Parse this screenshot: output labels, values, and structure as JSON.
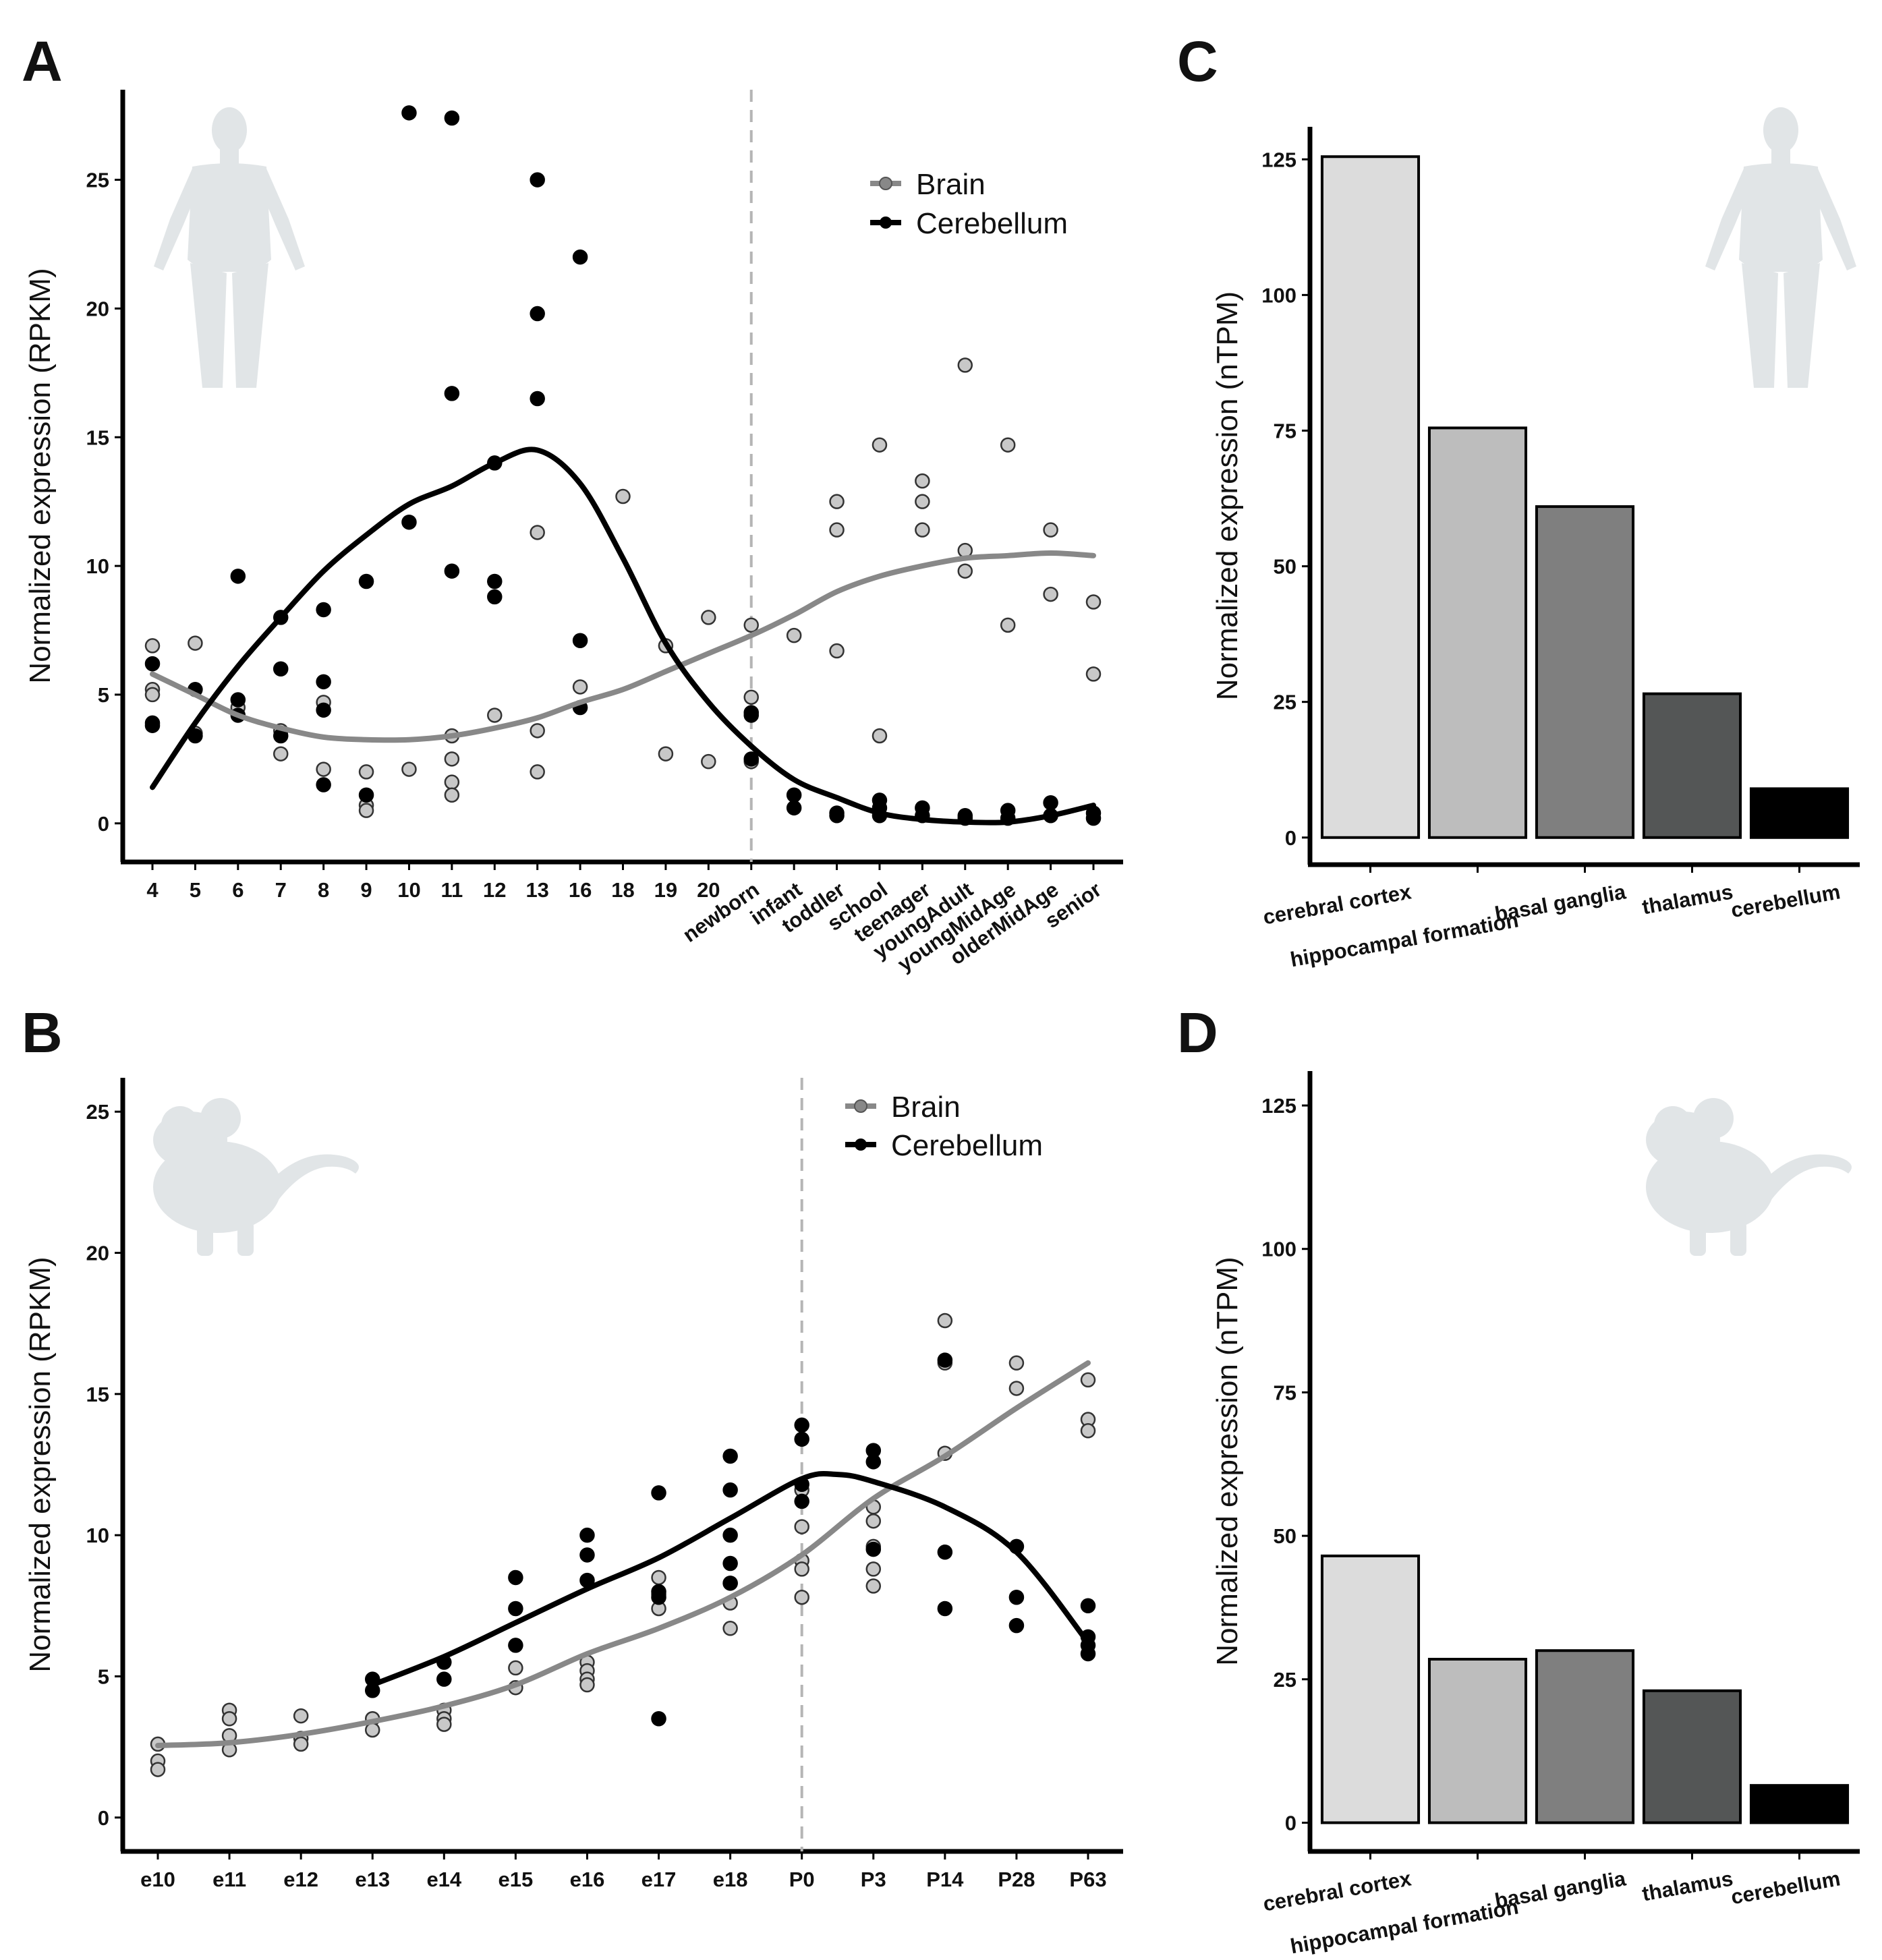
{
  "panels": [
    {
      "letter": "A"
    },
    {
      "letter": "B"
    },
    {
      "letter": "C"
    },
    {
      "letter": "D"
    }
  ],
  "legend": {
    "brain": "Brain",
    "cerebellum": "Cerebellum"
  },
  "colors": {
    "brain": "#888888",
    "cerebellum": "#000000",
    "brain_fill": "#c8c8c8",
    "silhouette": "#e1e5e7",
    "bar_colors": [
      "#dcdcdc",
      "#bdbdbd",
      "#7f7f7f",
      "#545656",
      "#000000"
    ]
  },
  "chart_data": [
    {
      "id": "A",
      "type": "scatter",
      "title": "",
      "xlabel": "",
      "ylabel": "Normalized expression (RPKM)",
      "ylim": [
        -1.5,
        28.5
      ],
      "yticks": [
        0,
        5,
        10,
        15,
        20,
        25
      ],
      "categories": [
        "4",
        "5",
        "6",
        "7",
        "8",
        "9",
        "10",
        "11",
        "12",
        "13",
        "16",
        "18",
        "19",
        "20",
        "newborn",
        "infant",
        "toddler",
        "school",
        "teenager",
        "youngAdult",
        "youngMidAge",
        "olderMidAge",
        "senior"
      ],
      "divider_after": "newborn",
      "series": [
        {
          "name": "Brain",
          "points": [
            [
              0,
              6.9
            ],
            [
              0,
              5.2
            ],
            [
              0,
              5.0
            ],
            [
              1,
              7.0
            ],
            [
              1,
              3.5
            ],
            [
              2,
              4.5
            ],
            [
              3,
              3.6
            ],
            [
              3,
              2.7
            ],
            [
              4,
              4.7
            ],
            [
              4,
              2.1
            ],
            [
              5,
              2.0
            ],
            [
              5,
              0.7
            ],
            [
              5,
              0.5
            ],
            [
              6,
              2.1
            ],
            [
              7,
              3.4
            ],
            [
              7,
              2.5
            ],
            [
              7,
              1.6
            ],
            [
              7,
              1.1
            ],
            [
              8,
              4.2
            ],
            [
              9,
              11.3
            ],
            [
              9,
              3.6
            ],
            [
              9,
              2.0
            ],
            [
              10,
              5.3
            ],
            [
              11,
              12.7
            ],
            [
              12,
              6.9
            ],
            [
              12,
              2.7
            ],
            [
              13,
              8.0
            ],
            [
              13,
              2.4
            ],
            [
              14,
              7.7
            ],
            [
              14,
              4.9
            ],
            [
              14,
              2.4
            ],
            [
              15,
              7.3
            ],
            [
              16,
              12.5
            ],
            [
              16,
              11.4
            ],
            [
              16,
              6.7
            ],
            [
              17,
              14.7
            ],
            [
              17,
              3.4
            ],
            [
              18,
              13.3
            ],
            [
              18,
              12.5
            ],
            [
              18,
              11.4
            ],
            [
              19,
              17.8
            ],
            [
              19,
              10.6
            ],
            [
              19,
              9.8
            ],
            [
              20,
              14.7
            ],
            [
              20,
              7.7
            ],
            [
              21,
              11.4
            ],
            [
              21,
              8.9
            ],
            [
              22,
              8.6
            ],
            [
              22,
              5.8
            ]
          ],
          "trend": [
            [
              0,
              5.8
            ],
            [
              1,
              5.0
            ],
            [
              2,
              4.2
            ],
            [
              3,
              3.7
            ],
            [
              4,
              3.35
            ],
            [
              5,
              3.25
            ],
            [
              6,
              3.25
            ],
            [
              7,
              3.4
            ],
            [
              8,
              3.7
            ],
            [
              9,
              4.1
            ],
            [
              10,
              4.7
            ],
            [
              11,
              5.2
            ],
            [
              12,
              5.9
            ],
            [
              13,
              6.6
            ],
            [
              14,
              7.3
            ],
            [
              15,
              8.1
            ],
            [
              16,
              9.0
            ],
            [
              17,
              9.6
            ],
            [
              18,
              10.0
            ],
            [
              19,
              10.3
            ],
            [
              20,
              10.4
            ],
            [
              21,
              10.5
            ],
            [
              22,
              10.4
            ]
          ]
        },
        {
          "name": "Cerebellum",
          "points": [
            [
              0,
              6.2
            ],
            [
              0,
              3.9
            ],
            [
              0,
              3.8
            ],
            [
              1,
              5.2
            ],
            [
              1,
              3.4
            ],
            [
              2,
              9.6
            ],
            [
              2,
              4.8
            ],
            [
              2,
              4.2
            ],
            [
              3,
              8.0
            ],
            [
              3,
              6.0
            ],
            [
              3,
              3.4
            ],
            [
              4,
              8.3
            ],
            [
              4,
              5.5
            ],
            [
              4,
              4.4
            ],
            [
              4,
              1.5
            ],
            [
              5,
              9.4
            ],
            [
              5,
              1.1
            ],
            [
              6,
              27.6
            ],
            [
              6,
              11.7
            ],
            [
              7,
              27.4
            ],
            [
              7,
              16.7
            ],
            [
              7,
              9.8
            ],
            [
              8,
              14.0
            ],
            [
              8,
              9.4
            ],
            [
              8,
              8.8
            ],
            [
              9,
              25.0
            ],
            [
              9,
              19.8
            ],
            [
              9,
              16.5
            ],
            [
              10,
              22.0
            ],
            [
              10,
              7.1
            ],
            [
              10,
              4.5
            ],
            [
              14,
              4.3
            ],
            [
              14,
              4.2
            ],
            [
              14,
              2.5
            ],
            [
              15,
              1.1
            ],
            [
              15,
              0.6
            ],
            [
              16,
              0.4
            ],
            [
              16,
              0.3
            ],
            [
              17,
              0.9
            ],
            [
              17,
              0.6
            ],
            [
              17,
              0.3
            ],
            [
              18,
              0.6
            ],
            [
              18,
              0.3
            ],
            [
              19,
              0.3
            ],
            [
              19,
              0.2
            ],
            [
              20,
              0.5
            ],
            [
              20,
              0.2
            ],
            [
              21,
              0.8
            ],
            [
              21,
              0.3
            ],
            [
              22,
              0.4
            ],
            [
              22,
              0.2
            ]
          ],
          "trend": [
            [
              0,
              1.4
            ],
            [
              1,
              3.9
            ],
            [
              2,
              6.1
            ],
            [
              3,
              8.0
            ],
            [
              4,
              9.8
            ],
            [
              5,
              11.2
            ],
            [
              6,
              12.4
            ],
            [
              7,
              13.1
            ],
            [
              8,
              14.0
            ],
            [
              9,
              14.5
            ],
            [
              10,
              13.2
            ],
            [
              11,
              10.3
            ],
            [
              12,
              7.0
            ],
            [
              13,
              4.7
            ],
            [
              14,
              3.0
            ],
            [
              15,
              1.7
            ],
            [
              16,
              1.0
            ],
            [
              17,
              0.4
            ],
            [
              18,
              0.15
            ],
            [
              19,
              0.05
            ],
            [
              20,
              0.05
            ],
            [
              21,
              0.3
            ],
            [
              22,
              0.7
            ]
          ]
        }
      ]
    },
    {
      "id": "B",
      "type": "scatter",
      "title": "",
      "xlabel": "",
      "ylabel": "Normalized expression (RPKM)",
      "ylim": [
        -1.2,
        26.2
      ],
      "yticks": [
        0,
        5,
        10,
        15,
        20,
        25
      ],
      "categories": [
        "e10",
        "e11",
        "e12",
        "e13",
        "e14",
        "e15",
        "e16",
        "e17",
        "e18",
        "P0",
        "P3",
        "P14",
        "P28",
        "P63"
      ],
      "divider_after": "P0",
      "series": [
        {
          "name": "Brain",
          "points": [
            [
              0,
              2.6
            ],
            [
              0,
              2.0
            ],
            [
              0,
              1.7
            ],
            [
              1,
              3.8
            ],
            [
              1,
              3.5
            ],
            [
              1,
              2.9
            ],
            [
              1,
              2.4
            ],
            [
              2,
              3.6
            ],
            [
              2,
              2.8
            ],
            [
              2,
              2.6
            ],
            [
              3,
              3.5
            ],
            [
              3,
              3.1
            ],
            [
              4,
              3.8
            ],
            [
              4,
              3.5
            ],
            [
              4,
              3.3
            ],
            [
              5,
              5.3
            ],
            [
              5,
              4.6
            ],
            [
              6,
              5.5
            ],
            [
              6,
              5.2
            ],
            [
              6,
              4.9
            ],
            [
              6,
              4.7
            ],
            [
              7,
              8.5
            ],
            [
              7,
              7.9
            ],
            [
              7,
              7.4
            ],
            [
              8,
              8.3
            ],
            [
              8,
              7.6
            ],
            [
              8,
              6.7
            ],
            [
              9,
              11.6
            ],
            [
              9,
              10.3
            ],
            [
              9,
              9.1
            ],
            [
              9,
              8.8
            ],
            [
              9,
              7.8
            ],
            [
              10,
              11.0
            ],
            [
              10,
              10.5
            ],
            [
              10,
              9.6
            ],
            [
              10,
              8.8
            ],
            [
              10,
              8.2
            ],
            [
              11,
              17.6
            ],
            [
              11,
              16.1
            ],
            [
              11,
              12.9
            ],
            [
              12,
              16.1
            ],
            [
              12,
              15.2
            ],
            [
              13,
              15.5
            ],
            [
              13,
              14.1
            ],
            [
              13,
              13.7
            ]
          ],
          "trend": [
            [
              0,
              2.55
            ],
            [
              1,
              2.65
            ],
            [
              2,
              2.95
            ],
            [
              3,
              3.4
            ],
            [
              4,
              3.95
            ],
            [
              5,
              4.7
            ],
            [
              6,
              5.8
            ],
            [
              7,
              6.7
            ],
            [
              8,
              7.8
            ],
            [
              9,
              9.3
            ],
            [
              10,
              11.3
            ],
            [
              11,
              12.8
            ],
            [
              12,
              14.5
            ],
            [
              13,
              16.1
            ]
          ]
        },
        {
          "name": "Cerebellum",
          "points": [
            [
              3,
              4.9
            ],
            [
              3,
              4.5
            ],
            [
              4,
              5.5
            ],
            [
              4,
              4.9
            ],
            [
              5,
              8.5
            ],
            [
              5,
              7.4
            ],
            [
              5,
              6.1
            ],
            [
              6,
              10.0
            ],
            [
              6,
              9.3
            ],
            [
              6,
              8.4
            ],
            [
              7,
              11.5
            ],
            [
              7,
              8.0
            ],
            [
              7,
              7.8
            ],
            [
              7,
              3.5
            ],
            [
              8,
              12.8
            ],
            [
              8,
              11.6
            ],
            [
              8,
              10.0
            ],
            [
              8,
              9.0
            ],
            [
              8,
              8.3
            ],
            [
              9,
              13.9
            ],
            [
              9,
              13.4
            ],
            [
              9,
              11.8
            ],
            [
              9,
              11.2
            ],
            [
              10,
              13.0
            ],
            [
              10,
              12.6
            ],
            [
              10,
              9.5
            ],
            [
              11,
              16.2
            ],
            [
              11,
              9.4
            ],
            [
              11,
              7.4
            ],
            [
              12,
              9.6
            ],
            [
              12,
              7.8
            ],
            [
              12,
              6.8
            ],
            [
              13,
              7.5
            ],
            [
              13,
              6.4
            ],
            [
              13,
              6.1
            ],
            [
              13,
              5.8
            ]
          ],
          "trend": [
            [
              3,
              4.7
            ],
            [
              4,
              5.7
            ],
            [
              5,
              6.9
            ],
            [
              6,
              8.1
            ],
            [
              7,
              9.2
            ],
            [
              8,
              10.6
            ],
            [
              9,
              12.0
            ],
            [
              9.5,
              12.15
            ],
            [
              10,
              11.9
            ],
            [
              11,
              11.0
            ],
            [
              12,
              9.4
            ],
            [
              13,
              6.2
            ]
          ]
        }
      ]
    },
    {
      "id": "C",
      "type": "bar",
      "title": "",
      "xlabel": "",
      "ylabel": "Normalized expression (nTPM)",
      "ylim": [
        -5,
        131
      ],
      "yticks": [
        0,
        25,
        50,
        75,
        100,
        125
      ],
      "categories": [
        "cerebral cortex",
        "hippocampal formation",
        "basal ganglia",
        "thalamus",
        "cerebellum"
      ],
      "values": [
        125.5,
        75.5,
        61.0,
        26.5,
        9.0
      ]
    },
    {
      "id": "D",
      "type": "bar",
      "title": "",
      "xlabel": "",
      "ylabel": "Normalized expression (nTPM)",
      "ylim": [
        -5,
        131
      ],
      "yticks": [
        0,
        25,
        50,
        75,
        100,
        125
      ],
      "categories": [
        "cerebral cortex",
        "hippocampal formation",
        "basal ganglia",
        "thalamus",
        "cerebellum"
      ],
      "values": [
        46.5,
        28.5,
        30.0,
        23.0,
        6.5
      ]
    }
  ]
}
